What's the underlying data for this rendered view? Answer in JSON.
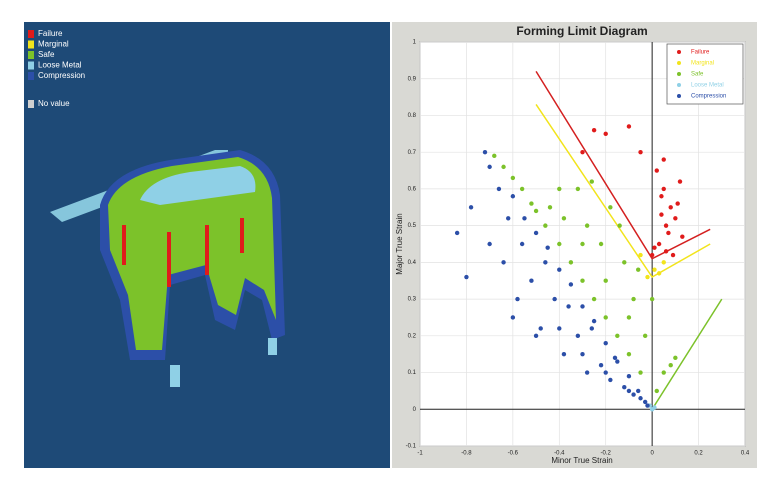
{
  "left_legend": {
    "items": [
      {
        "label": "Failure",
        "color": "#e01b1b"
      },
      {
        "label": "Marginal",
        "color": "#f2e41c"
      },
      {
        "label": "Safe",
        "color": "#7cc22a"
      },
      {
        "label": "Loose Metal",
        "color": "#8fd0e6"
      },
      {
        "label": "Compression",
        "color": "#2c4fa8"
      },
      {
        "label": "No value",
        "color": "#d0d0d0"
      }
    ]
  },
  "chart_data": {
    "type": "scatter",
    "title": "Forming Limit Diagram",
    "xlabel": "Minor True Strain",
    "ylabel": "Major True Strain",
    "xlim": [
      -1,
      0.4
    ],
    "xticks": [
      -1,
      -0.8,
      -0.6,
      -0.4,
      -0.2,
      0,
      0.2,
      0.4
    ],
    "ylim": [
      -0.1,
      1
    ],
    "yticks": [
      -0.1,
      0,
      0.1,
      0.2,
      0.3,
      0.4,
      0.5,
      0.6,
      0.7,
      0.8,
      0.9,
      1
    ],
    "grid": true,
    "legend": "top-right",
    "series": [
      {
        "name": "Failure",
        "color": "#e01b1b",
        "x": [
          -0.3,
          -0.25,
          -0.2,
          -0.1,
          -0.05,
          0.02,
          0.04,
          0.05,
          0.06,
          0.08,
          0.1,
          0.12,
          0.03,
          0.07,
          0.09,
          0.01,
          0.11,
          0.05,
          0,
          0.13,
          0.06,
          0.04
        ],
        "values": [
          0.7,
          0.76,
          0.75,
          0.77,
          0.7,
          0.65,
          0.58,
          0.6,
          0.5,
          0.55,
          0.52,
          0.62,
          0.45,
          0.48,
          0.42,
          0.44,
          0.56,
          0.68,
          0.42,
          0.47,
          0.43,
          0.53
        ]
      },
      {
        "name": "Marginal",
        "color": "#f2e41c",
        "x": [
          -0.02,
          0.01,
          0.03,
          0.05,
          -0.05
        ],
        "values": [
          0.36,
          0.38,
          0.37,
          0.4,
          0.42
        ]
      },
      {
        "name": "Safe",
        "color": "#7cc22a",
        "x": [
          -0.68,
          -0.64,
          -0.6,
          -0.56,
          -0.52,
          -0.5,
          -0.46,
          -0.44,
          -0.4,
          -0.38,
          -0.35,
          -0.32,
          -0.3,
          -0.28,
          -0.25,
          -0.22,
          -0.2,
          -0.18,
          -0.15,
          -0.12,
          -0.1,
          -0.08,
          -0.05,
          -0.03,
          0,
          0.02,
          0.05,
          0.08,
          0.1,
          -0.3,
          -0.2,
          -0.1,
          -0.4,
          -0.26,
          -0.14,
          -0.06
        ],
        "values": [
          0.69,
          0.66,
          0.63,
          0.6,
          0.56,
          0.54,
          0.5,
          0.55,
          0.45,
          0.52,
          0.4,
          0.6,
          0.35,
          0.5,
          0.3,
          0.45,
          0.25,
          0.55,
          0.2,
          0.4,
          0.15,
          0.3,
          0.1,
          0.2,
          0.3,
          0.05,
          0.1,
          0.12,
          0.14,
          0.45,
          0.35,
          0.25,
          0.6,
          0.62,
          0.5,
          0.38
        ]
      },
      {
        "name": "Loose Metal",
        "color": "#8fd0e6",
        "x": [
          0,
          -0.01,
          0.01
        ],
        "values": [
          0,
          0.01,
          0.005
        ]
      },
      {
        "name": "Compression",
        "color": "#2c4fa8",
        "x": [
          -0.84,
          -0.8,
          -0.78,
          -0.72,
          -0.7,
          -0.66,
          -0.64,
          -0.62,
          -0.6,
          -0.58,
          -0.56,
          -0.55,
          -0.52,
          -0.5,
          -0.48,
          -0.46,
          -0.45,
          -0.42,
          -0.4,
          -0.38,
          -0.36,
          -0.35,
          -0.32,
          -0.3,
          -0.28,
          -0.26,
          -0.25,
          -0.22,
          -0.2,
          -0.18,
          -0.16,
          -0.15,
          -0.12,
          -0.1,
          -0.08,
          -0.06,
          -0.05,
          -0.03,
          -0.02,
          -0.7,
          -0.6,
          -0.5,
          -0.4,
          -0.3,
          -0.2,
          -0.1
        ],
        "values": [
          0.48,
          0.36,
          0.55,
          0.7,
          0.66,
          0.6,
          0.4,
          0.52,
          0.58,
          0.3,
          0.45,
          0.52,
          0.35,
          0.48,
          0.22,
          0.4,
          0.44,
          0.3,
          0.38,
          0.15,
          0.28,
          0.34,
          0.2,
          0.28,
          0.1,
          0.22,
          0.24,
          0.12,
          0.18,
          0.08,
          0.14,
          0.13,
          0.06,
          0.09,
          0.04,
          0.05,
          0.03,
          0.02,
          0.01,
          0.45,
          0.25,
          0.2,
          0.22,
          0.15,
          0.1,
          0.05
        ]
      }
    ],
    "curves": [
      {
        "color": "#d42020",
        "x": [
          -0.5,
          0,
          0.25
        ],
        "values": [
          0.92,
          0.41,
          0.49
        ]
      },
      {
        "color": "#f2e41c",
        "x": [
          -0.5,
          0,
          0.25
        ],
        "values": [
          0.83,
          0.36,
          0.45
        ]
      },
      {
        "color": "#7cc22a",
        "x": [
          0,
          0.3
        ],
        "values": [
          0,
          0.3
        ]
      }
    ]
  }
}
